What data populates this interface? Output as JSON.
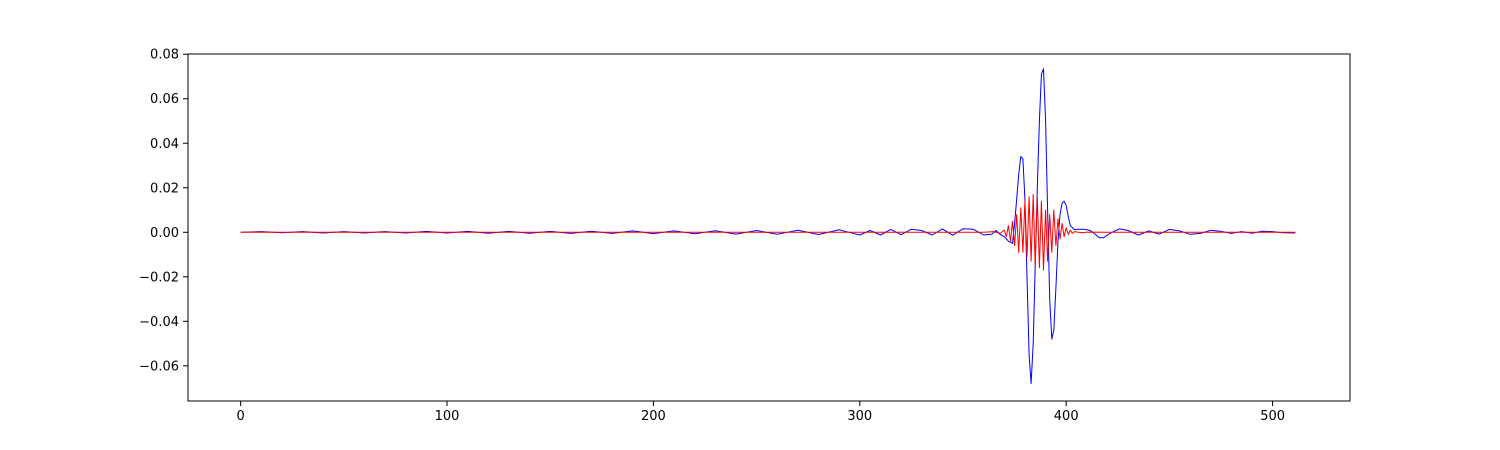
{
  "chart_data": {
    "type": "line",
    "title": "",
    "xlabel": "",
    "ylabel": "",
    "xlim": [
      -25.5,
      537.5
    ],
    "ylim": [
      -0.0758,
      0.0801
    ],
    "x_ticks": [
      0,
      100,
      200,
      300,
      400,
      500
    ],
    "y_ticks": [
      -0.06,
      -0.04,
      -0.02,
      0.0,
      0.02,
      0.04,
      0.06,
      0.08
    ],
    "x_tick_labels": [
      "0",
      "100",
      "200",
      "300",
      "400",
      "500"
    ],
    "y_tick_labels": [
      "−0.06",
      "−0.04",
      "−0.02",
      "0.00",
      "0.02",
      "0.04",
      "0.06",
      "0.08"
    ],
    "grid": false,
    "legend": "none",
    "series": [
      {
        "color": "#0000ff",
        "x": [
          0,
          10,
          20,
          30,
          40,
          50,
          60,
          70,
          80,
          90,
          100,
          110,
          120,
          130,
          140,
          150,
          160,
          170,
          180,
          190,
          200,
          210,
          220,
          230,
          240,
          250,
          260,
          270,
          280,
          290,
          300,
          305,
          310,
          315,
          320,
          325,
          330,
          335,
          340,
          345,
          350,
          355,
          360,
          364,
          366,
          368,
          370,
          372,
          374,
          375,
          376,
          377,
          378,
          379,
          380,
          381,
          382,
          383,
          384,
          385,
          386,
          387,
          388,
          389,
          390,
          391,
          392,
          393,
          394,
          395,
          396,
          397,
          398,
          399,
          400,
          401,
          402,
          404,
          406,
          408,
          410,
          412,
          414,
          416,
          418,
          420,
          423,
          426,
          430,
          435,
          440,
          445,
          450,
          455,
          460,
          465,
          470,
          475,
          480,
          485,
          490,
          495,
          500,
          505,
          511
        ],
        "y": [
          0.0,
          0.0003,
          -0.0002,
          0.0003,
          -0.0003,
          0.0003,
          -0.0003,
          0.0003,
          -0.0003,
          0.0004,
          -0.0003,
          0.0004,
          -0.0004,
          0.0004,
          -0.0004,
          0.0004,
          -0.0005,
          0.0005,
          -0.0005,
          0.0006,
          -0.0006,
          0.0006,
          -0.0007,
          0.0007,
          -0.0008,
          0.0008,
          -0.0009,
          0.0009,
          -0.001,
          0.0011,
          -0.0012,
          0.0008,
          -0.0012,
          0.0013,
          -0.0011,
          0.0014,
          0.0008,
          -0.0012,
          0.0015,
          -0.0013,
          0.0016,
          0.0014,
          -0.0012,
          -0.0008,
          0.0008,
          -0.001,
          -0.002,
          -0.004,
          -0.005,
          0.004,
          0.015,
          0.026,
          0.034,
          0.033,
          0.015,
          -0.02,
          -0.055,
          -0.068,
          -0.05,
          -0.015,
          0.02,
          0.05,
          0.071,
          0.0735,
          0.05,
          0.01,
          -0.03,
          -0.048,
          -0.044,
          -0.025,
          -0.004,
          0.008,
          0.013,
          0.014,
          0.012,
          0.007,
          0.003,
          0.0012,
          0.0014,
          0.0014,
          0.0012,
          0.0006,
          -0.0008,
          -0.0025,
          -0.0025,
          -0.0012,
          0.0004,
          0.0015,
          0.0008,
          -0.0012,
          0.0006,
          -0.0008,
          0.0013,
          0.0006,
          -0.0009,
          -0.0005,
          0.0009,
          0.0004,
          -0.0005,
          0.0003,
          -0.0004,
          0.0005,
          0.0003,
          -0.0002,
          -0.0003
        ]
      },
      {
        "color": "#ff0000",
        "x": [
          0,
          360,
          365,
          368,
          370,
          371,
          372,
          373,
          374,
          375,
          376,
          377,
          378,
          379,
          380,
          381,
          382,
          383,
          384,
          385,
          386,
          387,
          388,
          389,
          390,
          391,
          392,
          393,
          394,
          395,
          396,
          397,
          398,
          399,
          400,
          401,
          402,
          403,
          404,
          406,
          408,
          410,
          420,
          450,
          480,
          511
        ],
        "y": [
          0.0,
          0.0,
          0.0003,
          -0.0005,
          0.001,
          -0.002,
          0.003,
          -0.004,
          0.005,
          -0.006,
          0.008,
          -0.009,
          0.011,
          -0.009,
          0.014,
          -0.011,
          0.016,
          -0.013,
          0.017,
          -0.015,
          0.016,
          -0.016,
          0.014,
          -0.017,
          0.01,
          -0.013,
          0.008,
          -0.009,
          0.01,
          -0.006,
          0.006,
          -0.003,
          0.004,
          -0.002,
          0.002,
          -0.001,
          0.001,
          -0.0005,
          0.0003,
          0.0,
          -0.0002,
          0.0001,
          0.0,
          0.0,
          0.0,
          0.0
        ]
      }
    ]
  }
}
